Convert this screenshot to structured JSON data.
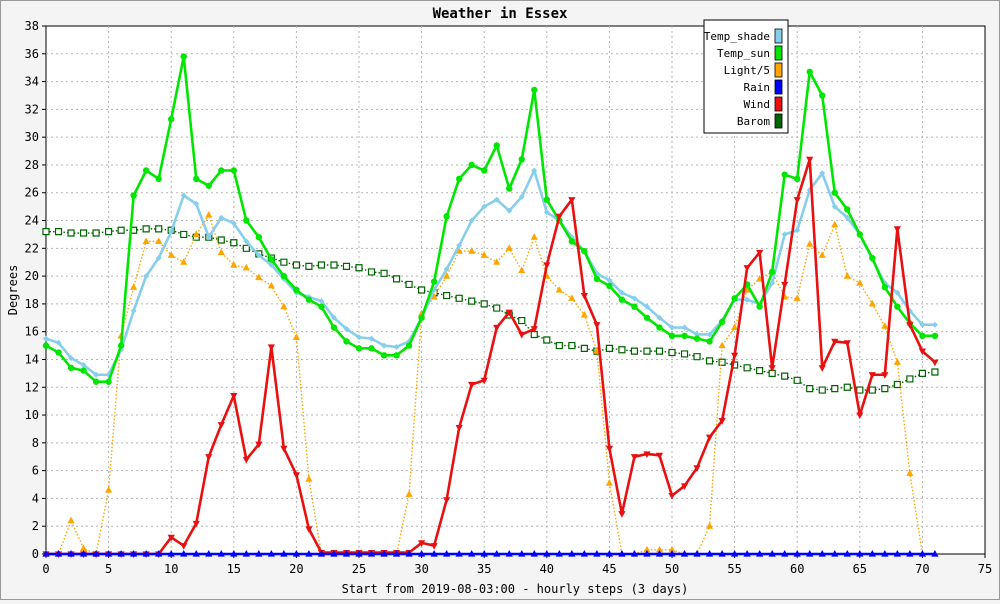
{
  "chart_data": {
    "type": "line",
    "title": "Weather in Essex",
    "xlabel": "Start from 2019-08-03:00 - hourly steps (3 days)",
    "ylabel": "Degrees",
    "xlim": [
      0,
      75
    ],
    "ylim": [
      0,
      38
    ],
    "x_ticks": [
      0,
      5,
      10,
      15,
      20,
      25,
      30,
      35,
      40,
      45,
      50,
      55,
      60,
      65,
      70,
      75
    ],
    "y_ticks": [
      0,
      2,
      4,
      6,
      8,
      10,
      12,
      14,
      16,
      18,
      20,
      22,
      24,
      26,
      28,
      30,
      32,
      34,
      36,
      38
    ],
    "grid": true,
    "legend_position": "top-right",
    "x": [
      0,
      1,
      2,
      3,
      4,
      5,
      6,
      7,
      8,
      9,
      10,
      11,
      12,
      13,
      14,
      15,
      16,
      17,
      18,
      19,
      20,
      21,
      22,
      23,
      24,
      25,
      26,
      27,
      28,
      29,
      30,
      31,
      32,
      33,
      34,
      35,
      36,
      37,
      38,
      39,
      40,
      41,
      42,
      43,
      44,
      45,
      46,
      47,
      48,
      49,
      50,
      51,
      52,
      53,
      54,
      55,
      56,
      57,
      58,
      59,
      60,
      61,
      62,
      63,
      64,
      65,
      66,
      67,
      68,
      69,
      70,
      71
    ],
    "series": [
      {
        "name": "Temp_shade",
        "color": "#87ceeb",
        "marker": "diamond",
        "line_style": "solid",
        "values": [
          15.5,
          15.2,
          14.1,
          13.6,
          12.9,
          12.9,
          14.7,
          17.5,
          20.0,
          21.3,
          23.2,
          25.8,
          25.2,
          22.8,
          24.2,
          23.8,
          22.5,
          21.5,
          20.8,
          19.8,
          18.8,
          18.5,
          18.2,
          17.0,
          16.2,
          15.6,
          15.5,
          15.0,
          14.9,
          15.3,
          17.0,
          19.0,
          20.5,
          22.2,
          24.0,
          25.0,
          25.5,
          24.7,
          25.7,
          27.6,
          24.6,
          24.0,
          22.8,
          21.8,
          20.2,
          19.7,
          18.8,
          18.4,
          17.8,
          17.0,
          16.3,
          16.3,
          15.8,
          15.8,
          16.8,
          18.3,
          18.3,
          18.0,
          19.5,
          23.0,
          23.3,
          26.2,
          27.4,
          25.0,
          24.2,
          23.0,
          21.2,
          19.5,
          18.8,
          17.5,
          16.5,
          16.5
        ]
      },
      {
        "name": "Temp_sun",
        "color": "#00e600",
        "marker": "circle",
        "line_style": "solid",
        "values": [
          15.0,
          14.5,
          13.4,
          13.2,
          12.4,
          12.4,
          15.0,
          25.8,
          27.6,
          27.0,
          31.3,
          35.8,
          27.0,
          26.5,
          27.6,
          27.6,
          24.0,
          22.8,
          21.2,
          20.0,
          19.0,
          18.3,
          17.8,
          16.3,
          15.3,
          14.8,
          14.8,
          14.3,
          14.3,
          15.0,
          17.0,
          19.6,
          24.3,
          27.0,
          28.0,
          27.6,
          29.4,
          26.3,
          28.4,
          33.4,
          25.5,
          24.0,
          22.5,
          21.8,
          19.8,
          19.3,
          18.3,
          17.8,
          17.0,
          16.3,
          15.7,
          15.7,
          15.5,
          15.3,
          16.7,
          18.4,
          19.4,
          17.8,
          20.3,
          27.3,
          27.0,
          34.7,
          33.0,
          26.0,
          24.8,
          23.0,
          21.3,
          19.2,
          17.8,
          16.6,
          15.7,
          15.7
        ]
      },
      {
        "name": "Light/5",
        "color": "#ffa500",
        "marker": "triangle-up",
        "line_style": "dotted",
        "values": [
          0.0,
          0.0,
          2.4,
          0.4,
          0.0,
          4.6,
          15.7,
          19.2,
          22.5,
          22.5,
          21.5,
          21.0,
          23.0,
          24.4,
          21.7,
          20.8,
          20.6,
          19.9,
          19.3,
          17.8,
          15.6,
          5.4,
          0.0,
          0.0,
          0.0,
          0.0,
          0.0,
          0.0,
          0.0,
          4.3,
          17.3,
          18.5,
          20.0,
          21.8,
          21.8,
          21.5,
          21.0,
          22.0,
          20.4,
          22.8,
          20.0,
          19.0,
          18.4,
          17.2,
          14.6,
          5.1,
          0.0,
          0.0,
          0.3,
          0.3,
          0.3,
          0.0,
          0.0,
          2.0,
          15.0,
          16.3,
          19.0,
          19.8,
          20.3,
          18.5,
          18.4,
          22.3,
          21.5,
          23.7,
          20.0,
          19.5,
          18.0,
          16.4,
          13.8,
          5.8,
          0.0,
          0.0
        ]
      },
      {
        "name": "Rain",
        "color": "#0000ff",
        "marker": "triangle-up",
        "line_style": "solid",
        "values": [
          0,
          0,
          0,
          0,
          0,
          0,
          0,
          0,
          0,
          0,
          0,
          0,
          0,
          0,
          0,
          0,
          0,
          0,
          0,
          0,
          0,
          0,
          0,
          0,
          0,
          0,
          0,
          0,
          0,
          0,
          0,
          0,
          0,
          0,
          0,
          0,
          0,
          0,
          0,
          0,
          0,
          0,
          0,
          0,
          0,
          0,
          0,
          0,
          0,
          0,
          0,
          0,
          0,
          0,
          0,
          0,
          0,
          0,
          0,
          0,
          0,
          0,
          0,
          0,
          0,
          0,
          0,
          0,
          0,
          0,
          0,
          0
        ]
      },
      {
        "name": "Wind",
        "color": "#e81010",
        "marker": "triangle-down",
        "line_style": "solid",
        "values": [
          0,
          0,
          0,
          0,
          0,
          0,
          0,
          0,
          0,
          0,
          1.2,
          0.6,
          2.2,
          7.0,
          9.3,
          11.4,
          6.8,
          7.9,
          14.9,
          7.6,
          5.7,
          1.8,
          0.1,
          0.1,
          0.1,
          0.1,
          0.1,
          0.1,
          0.1,
          0.1,
          0.8,
          0.6,
          3.9,
          9.1,
          12.2,
          12.5,
          16.3,
          17.4,
          15.8,
          16.2,
          20.8,
          24.3,
          25.5,
          18.6,
          16.5,
          7.6,
          2.9,
          7.0,
          7.2,
          7.1,
          4.2,
          4.9,
          6.2,
          8.4,
          9.6,
          14.3,
          20.6,
          21.7,
          13.4,
          19.4,
          25.5,
          28.4,
          13.4,
          15.3,
          15.2,
          10.0,
          12.9,
          12.9,
          23.4,
          16.5,
          14.6,
          13.8
        ]
      },
      {
        "name": "Barom",
        "color": "#006400",
        "marker": "square-open",
        "line_style": "dotted",
        "values": [
          23.2,
          23.2,
          23.1,
          23.1,
          23.1,
          23.2,
          23.3,
          23.3,
          23.4,
          23.4,
          23.3,
          23.0,
          22.8,
          22.8,
          22.6,
          22.4,
          22.0,
          21.6,
          21.3,
          21.0,
          20.8,
          20.7,
          20.8,
          20.8,
          20.7,
          20.6,
          20.3,
          20.2,
          19.8,
          19.4,
          19.0,
          18.8,
          18.6,
          18.4,
          18.2,
          18.0,
          17.7,
          17.2,
          16.8,
          15.8,
          15.4,
          15.0,
          15.0,
          14.8,
          14.6,
          14.8,
          14.7,
          14.6,
          14.6,
          14.6,
          14.5,
          14.4,
          14.2,
          13.9,
          13.8,
          13.6,
          13.4,
          13.2,
          13.0,
          12.8,
          12.5,
          11.9,
          11.8,
          11.9,
          12.0,
          11.8,
          11.8,
          11.9,
          12.2,
          12.6,
          13.0,
          13.1
        ]
      }
    ]
  }
}
